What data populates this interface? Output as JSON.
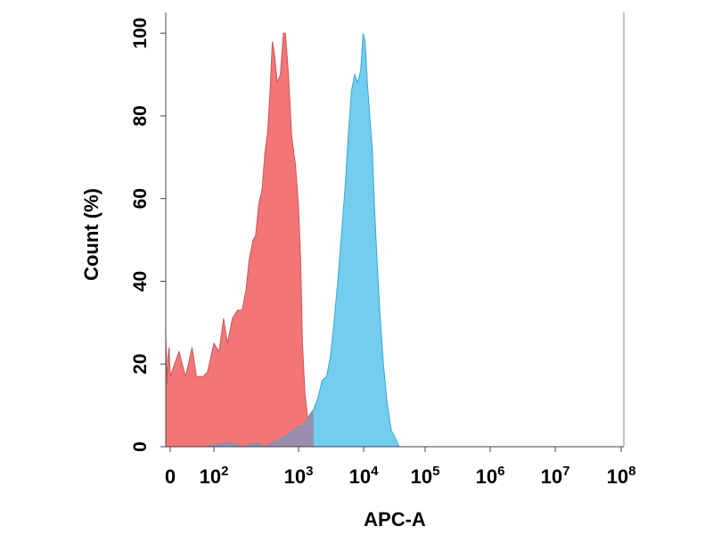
{
  "chart_data": {
    "type": "area",
    "xlabel": "APC-A",
    "ylabel": "Count  (%)",
    "xscale": "biexponential",
    "xlim": [
      -100,
      100000000
    ],
    "ylim": [
      0,
      105
    ],
    "grid": false,
    "legend": "none",
    "y_ticks": [
      {
        "value": 0,
        "label": "0"
      },
      {
        "value": 20,
        "label": "20"
      },
      {
        "value": 40,
        "label": "40"
      },
      {
        "value": 60,
        "label": "60"
      },
      {
        "value": 80,
        "label": "80"
      },
      {
        "value": 100,
        "label": "100"
      }
    ],
    "x_ticks": [
      {
        "value": 0,
        "base": "0",
        "exp": ""
      },
      {
        "value": 100,
        "base": "10",
        "exp": "2"
      },
      {
        "value": 1000,
        "base": "10",
        "exp": "3"
      },
      {
        "value": 10000,
        "base": "10",
        "exp": "4"
      },
      {
        "value": 100000,
        "base": "10",
        "exp": "5"
      },
      {
        "value": 1000000,
        "base": "10",
        "exp": "6"
      },
      {
        "value": 10000000,
        "base": "10",
        "exp": "7"
      },
      {
        "value": 100000000,
        "base": "10",
        "exp": "8"
      }
    ],
    "series": [
      {
        "color": "#f47575",
        "stroke": "#c85a5a",
        "points": [
          [
            -100,
            27
          ],
          [
            -70,
            15
          ],
          [
            -50,
            22
          ],
          [
            -25,
            24
          ],
          [
            0,
            17
          ],
          [
            20,
            23
          ],
          [
            35,
            17
          ],
          [
            50,
            24
          ],
          [
            60,
            17
          ],
          [
            75,
            17
          ],
          [
            85,
            18
          ],
          [
            100,
            25
          ],
          [
            115,
            23
          ],
          [
            130,
            31
          ],
          [
            145,
            25
          ],
          [
            165,
            31
          ],
          [
            190,
            33
          ],
          [
            215,
            33
          ],
          [
            240,
            38
          ],
          [
            260,
            45
          ],
          [
            290,
            50
          ],
          [
            310,
            51
          ],
          [
            340,
            59
          ],
          [
            370,
            62
          ],
          [
            400,
            71
          ],
          [
            430,
            76
          ],
          [
            460,
            86
          ],
          [
            490,
            98
          ],
          [
            520,
            95
          ],
          [
            560,
            88
          ],
          [
            610,
            90
          ],
          [
            660,
            100
          ],
          [
            700,
            100
          ],
          [
            760,
            90
          ],
          [
            830,
            75
          ],
          [
            920,
            68
          ],
          [
            1000,
            58
          ],
          [
            1080,
            45
          ],
          [
            1150,
            25
          ],
          [
            1250,
            13
          ],
          [
            1400,
            6
          ],
          [
            1600,
            2
          ],
          [
            1800,
            0
          ]
        ]
      },
      {
        "color": "#6ccaee",
        "stroke": "#3aa6cf",
        "points": [
          [
            80,
            0
          ],
          [
            150,
            1
          ],
          [
            220,
            0
          ],
          [
            320,
            1
          ],
          [
            400,
            0
          ],
          [
            500,
            1
          ],
          [
            620,
            2
          ],
          [
            750,
            3
          ],
          [
            870,
            4
          ],
          [
            1000,
            5
          ],
          [
            1150,
            5
          ],
          [
            1300,
            6
          ],
          [
            1500,
            8
          ],
          [
            1700,
            9
          ],
          [
            2000,
            12
          ],
          [
            2300,
            16
          ],
          [
            2700,
            17
          ],
          [
            3100,
            22
          ],
          [
            3500,
            30
          ],
          [
            4000,
            40
          ],
          [
            4600,
            52
          ],
          [
            5200,
            63
          ],
          [
            5800,
            75
          ],
          [
            6500,
            86
          ],
          [
            7300,
            90
          ],
          [
            8100,
            88
          ],
          [
            9000,
            91
          ],
          [
            9800,
            100
          ],
          [
            10600,
            98
          ],
          [
            11500,
            88
          ],
          [
            12600,
            80
          ],
          [
            13800,
            72
          ],
          [
            15000,
            58
          ],
          [
            16500,
            45
          ],
          [
            18500,
            32
          ],
          [
            21000,
            20
          ],
          [
            24000,
            11
          ],
          [
            28000,
            4
          ],
          [
            33000,
            2
          ],
          [
            38000,
            0
          ]
        ]
      }
    ]
  }
}
